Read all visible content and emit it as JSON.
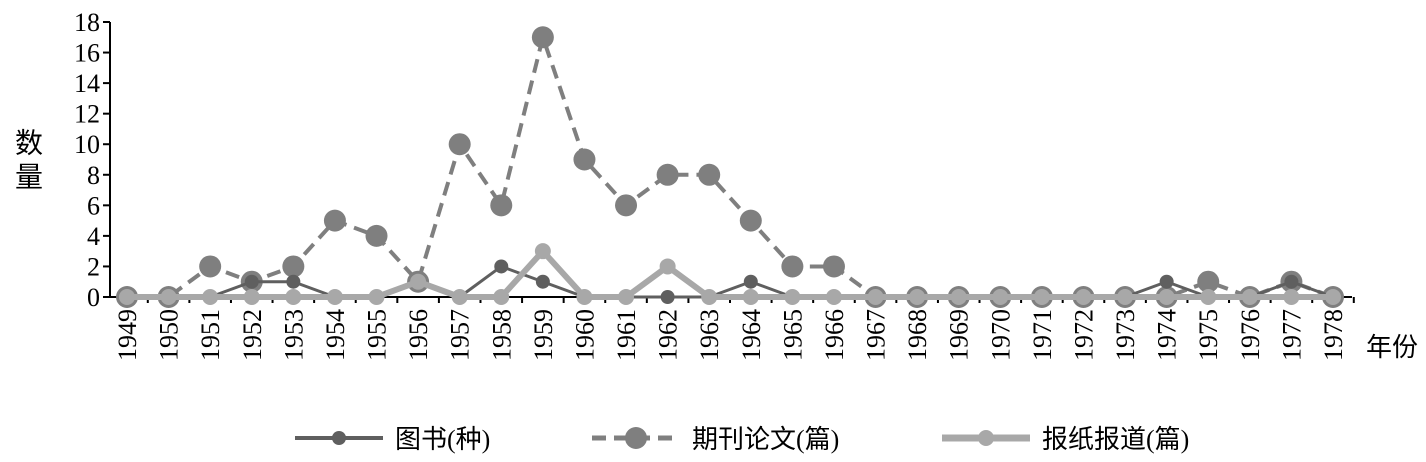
{
  "chart_data": {
    "type": "line",
    "x_label": "年份",
    "y_label": "数量",
    "categories": [
      "1949",
      "1950",
      "1951",
      "1952",
      "1953",
      "1954",
      "1955",
      "1956",
      "1957",
      "1958",
      "1959",
      "1960",
      "1961",
      "1962",
      "1963",
      "1964",
      "1965",
      "1966",
      "1967",
      "1968",
      "1969",
      "1970",
      "1971",
      "1972",
      "1973",
      "1974",
      "1975",
      "1976",
      "1977",
      "1978"
    ],
    "ylim": [
      0,
      18
    ],
    "yticks": [
      0,
      2,
      4,
      6,
      8,
      10,
      12,
      14,
      16,
      18
    ],
    "legend": "bottom",
    "series": [
      {
        "name": "图书(种)",
        "color": "#5f5f5f",
        "dash": false,
        "values": [
          0,
          0,
          0,
          1,
          1,
          0,
          0,
          1,
          0,
          2,
          1,
          0,
          0,
          0,
          0,
          1,
          0,
          0,
          0,
          0,
          0,
          0,
          0,
          0,
          0,
          1,
          0,
          0,
          1,
          0
        ]
      },
      {
        "name": "期刊论文(篇)",
        "color": "#7f7f7f",
        "dash": true,
        "values": [
          0,
          0,
          2,
          1,
          2,
          5,
          4,
          1,
          10,
          6,
          17,
          9,
          6,
          8,
          8,
          5,
          2,
          2,
          0,
          0,
          0,
          0,
          0,
          0,
          0,
          0,
          1,
          0,
          1,
          0
        ]
      },
      {
        "name": "报纸报道(篇)",
        "color": "#a8a8a8",
        "dash": false,
        "values": [
          0,
          0,
          0,
          0,
          0,
          0,
          0,
          1,
          0,
          0,
          3,
          0,
          0,
          2,
          0,
          0,
          0,
          0,
          0,
          0,
          0,
          0,
          0,
          0,
          0,
          0,
          0,
          0,
          0,
          0
        ]
      }
    ]
  }
}
